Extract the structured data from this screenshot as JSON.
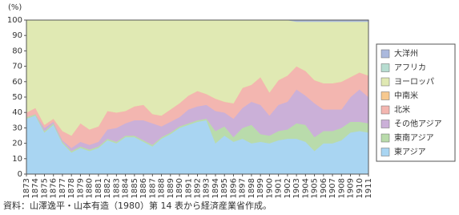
{
  "chart_data": {
    "type": "stacked-area",
    "y_unit": "(%)",
    "note": "資料：山澤逸平・山本有造（1980）第 14 表から経済産業省作成。",
    "x": [
      1873,
      1874,
      1875,
      1876,
      1877,
      1878,
      1879,
      1880,
      1881,
      1882,
      1883,
      1884,
      1885,
      1886,
      1887,
      1888,
      1889,
      1890,
      1891,
      1892,
      1893,
      1894,
      1895,
      1896,
      1897,
      1898,
      1899,
      1900,
      1901,
      1902,
      1903,
      1904,
      1905,
      1906,
      1907,
      1908,
      1909,
      1910,
      1911
    ],
    "xlim": [
      1873,
      1911
    ],
    "ylim": [
      0,
      100
    ],
    "yticks": [
      0,
      10,
      20,
      30,
      40,
      50,
      60,
      70,
      80,
      90,
      100
    ],
    "series": [
      {
        "name": "東アジア",
        "color": "#a9d5f2",
        "values": [
          36,
          38,
          27,
          32,
          20,
          14,
          17,
          15,
          17,
          22,
          20,
          24,
          24,
          21,
          18,
          23,
          26,
          30,
          32,
          34,
          35,
          20,
          25,
          21,
          23,
          20,
          21,
          20,
          22,
          23,
          23,
          21,
          15,
          20,
          20,
          22,
          27,
          28,
          27
        ]
      },
      {
        "name": "東南アジア",
        "color": "#b9dbab",
        "values": [
          1,
          1,
          1,
          1,
          1,
          1,
          1,
          1,
          1,
          1,
          1,
          1,
          1,
          1,
          1,
          1,
          1,
          1,
          1,
          1,
          1,
          8,
          6,
          3,
          7,
          12,
          5,
          5,
          6,
          6,
          10,
          11,
          9,
          8,
          8,
          8,
          7,
          6,
          6
        ]
      },
      {
        "name": "その他アジア",
        "color": "#cbb0d8",
        "values": [
          0,
          0,
          2,
          1,
          1,
          2,
          3,
          3,
          3,
          6,
          9,
          8,
          10,
          13,
          14,
          7,
          7,
          6,
          9,
          9,
          9,
          13,
          9,
          12,
          13,
          15,
          19,
          13,
          17,
          18,
          22,
          19,
          22,
          14,
          14,
          12,
          16,
          21,
          17
        ]
      },
      {
        "name": "北米",
        "color": "#f3b6b0",
        "values": [
          3,
          4,
          2,
          2,
          6,
          8,
          12,
          10,
          10,
          12,
          10,
          8,
          9,
          10,
          6,
          7,
          8,
          9,
          9,
          10,
          7,
          8,
          7,
          10,
          13,
          11,
          18,
          15,
          16,
          17,
          15,
          16,
          15,
          17,
          17,
          18,
          13,
          11,
          14
        ]
      },
      {
        "name": "中南米",
        "color": "#f7c98f",
        "values": [
          0,
          0,
          0,
          0,
          0,
          0,
          0,
          0,
          0,
          0,
          0,
          0,
          0,
          0,
          0,
          0,
          0,
          0,
          0,
          0,
          0,
          0,
          0,
          0,
          0,
          0,
          0,
          0,
          0,
          0,
          0,
          0,
          0,
          0,
          0,
          0,
          0,
          0,
          0
        ]
      },
      {
        "name": "ヨーロッパ",
        "color": "#e0e9b3",
        "values": [
          60,
          57,
          68,
          64,
          72,
          75,
          67,
          71,
          69,
          59,
          60,
          59,
          56,
          55,
          61,
          62,
          58,
          54,
          49,
          46,
          48,
          51,
          53,
          54,
          44,
          42,
          37,
          47,
          39,
          36,
          29,
          32,
          38,
          40,
          40,
          39,
          36,
          33,
          35
        ]
      },
      {
        "name": "アフリカ",
        "color": "#b7ddd1",
        "values": [
          0,
          0,
          0,
          0,
          0,
          0,
          0,
          0,
          0,
          0,
          0,
          0,
          0,
          0,
          0,
          0,
          0,
          0,
          0,
          0,
          0,
          0,
          0,
          0,
          0,
          0,
          0,
          0,
          0,
          0,
          0,
          0,
          0,
          0,
          0,
          0,
          0,
          0,
          0
        ]
      },
      {
        "name": "大洋州",
        "color": "#abb9dd",
        "values": [
          0,
          0,
          0,
          0,
          0,
          0,
          0,
          0,
          0,
          0,
          0,
          0,
          0,
          0,
          0,
          0,
          0,
          0,
          0,
          0,
          0,
          0,
          0,
          0,
          0,
          0,
          0,
          0,
          0,
          0,
          1,
          1,
          1,
          1,
          1,
          1,
          1,
          1,
          1
        ]
      }
    ]
  }
}
